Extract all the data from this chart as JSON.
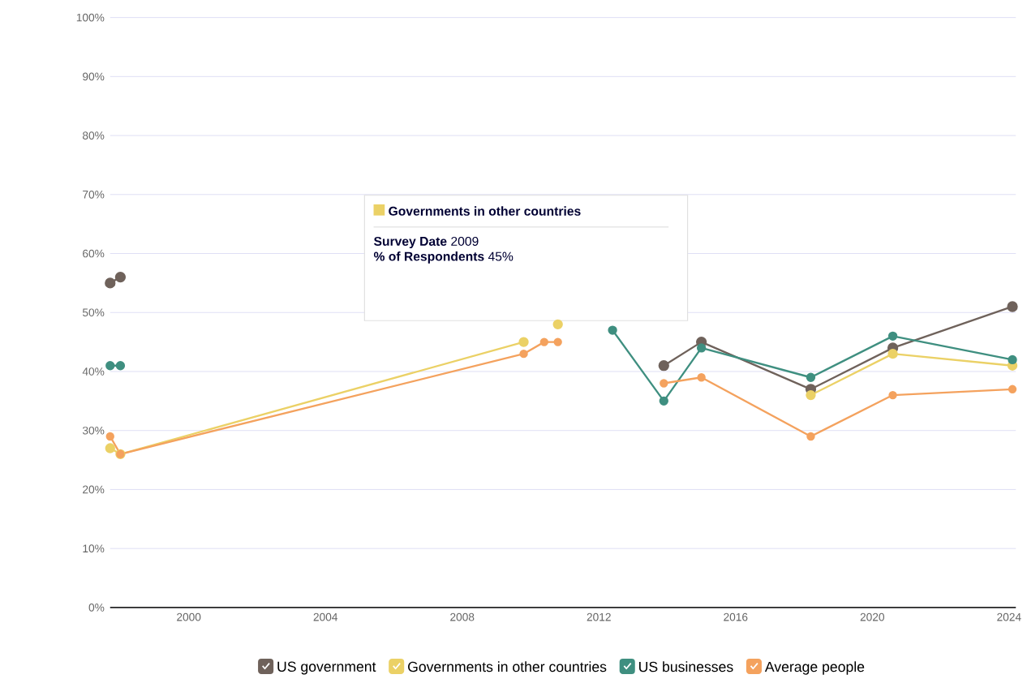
{
  "chart_data": {
    "type": "line",
    "x": [
      1997.7,
      1998.0,
      2009.8,
      2010.4,
      2010.8,
      2012.4,
      2013.9,
      2015.0,
      2018.2,
      2020.6,
      2024.1
    ],
    "series": [
      {
        "name": "US government",
        "color": "#6f625b",
        "values": [
          55,
          56,
          null,
          null,
          null,
          null,
          41,
          45,
          37,
          44,
          51
        ]
      },
      {
        "name": "Governments in other countries",
        "color": "#ebd166",
        "values": [
          27,
          26,
          45,
          null,
          48,
          null,
          null,
          null,
          36,
          43,
          41
        ]
      },
      {
        "name": "US businesses",
        "color": "#3f8f80",
        "values": [
          41,
          41,
          null,
          null,
          null,
          47,
          35,
          44,
          39,
          46,
          42
        ]
      },
      {
        "name": "Average people",
        "color": "#f4a25e",
        "values": [
          29,
          26,
          43,
          45,
          45,
          null,
          38,
          39,
          29,
          36,
          37
        ]
      }
    ],
    "xlim": [
      1997.7,
      2024.2
    ],
    "xticks": [
      2000,
      2004,
      2008,
      2012,
      2016,
      2020,
      2024
    ],
    "ylim": [
      0,
      100
    ],
    "yticks": [
      {
        "value": 0,
        "label": "0%"
      },
      {
        "value": 10,
        "label": "10%"
      },
      {
        "value": 20,
        "label": "20%"
      },
      {
        "value": 30,
        "label": "30%"
      },
      {
        "value": 40,
        "label": "40%"
      },
      {
        "value": 50,
        "label": "50%"
      },
      {
        "value": 60,
        "label": "60%"
      },
      {
        "value": 70,
        "label": "70%"
      },
      {
        "value": 80,
        "label": "80%"
      },
      {
        "value": 90,
        "label": "90%"
      },
      {
        "value": 100,
        "label": "100%"
      }
    ],
    "grid": "y",
    "legend": "bottom",
    "marker": "circle",
    "line_style": "solid",
    "annotations": [
      "**Governments in other countries**",
      "**Survey Date** 2009",
      "**% of Respondents** 45%"
    ]
  }
}
